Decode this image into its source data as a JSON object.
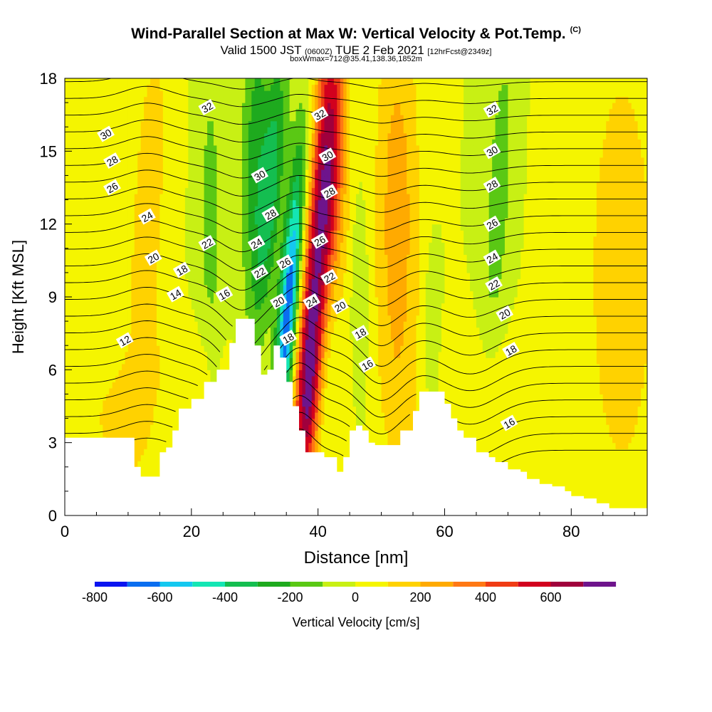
{
  "title": {
    "main": "Wind-Parallel Section at Max W: Vertical Velocity & Pot.Temp.",
    "copyright": "(C)",
    "valid": "Valid 1500 JST",
    "zulu": "(0600Z)",
    "date": "TUE 2 Feb 2021",
    "fcst": "[12hrFcst@2349z]",
    "box": "boxWmax=712@35.41,138.36,1852m"
  },
  "chart_data": {
    "type": "heatmap",
    "xlabel": "Distance [nm]",
    "ylabel": "Height [Kft MSL]",
    "xlim": [
      0,
      92
    ],
    "ylim": [
      0,
      18
    ],
    "xticks": [
      0,
      20,
      40,
      60,
      80
    ],
    "yticks": [
      0,
      3,
      6,
      9,
      12,
      15,
      18
    ],
    "colorbar": {
      "label": "Vertical Velocity [cm/s]",
      "ticks": [
        -800,
        -600,
        -400,
        -200,
        0,
        200,
        400,
        600
      ],
      "levels": [
        -800,
        -700,
        -600,
        -500,
        -400,
        -300,
        -200,
        -100,
        0,
        100,
        200,
        300,
        400,
        500,
        600,
        700
      ],
      "colors": [
        "#0a14f0",
        "#0a6ef0",
        "#14c8f0",
        "#14e6b4",
        "#14be50",
        "#1eaa1e",
        "#5ac814",
        "#c8f014",
        "#f5f500",
        "#ffd200",
        "#ffaa00",
        "#ff7814",
        "#f03c14",
        "#d2001e",
        "#a0003c",
        "#6e148c"
      ]
    },
    "terrain": [
      [
        0,
        3.2
      ],
      [
        10,
        3.2
      ],
      [
        11,
        2
      ],
      [
        12,
        1.6
      ],
      [
        14,
        1.6
      ],
      [
        15,
        2.6
      ],
      [
        16,
        2.8
      ],
      [
        17,
        3.5
      ],
      [
        18,
        4.4
      ],
      [
        20,
        4.8
      ],
      [
        22,
        5.5
      ],
      [
        24,
        6
      ],
      [
        26,
        7.1
      ],
      [
        27,
        8.1
      ],
      [
        29,
        8.1
      ],
      [
        30,
        7
      ],
      [
        31,
        5.8
      ],
      [
        32,
        6
      ],
      [
        33,
        7
      ],
      [
        34,
        6.5
      ],
      [
        35,
        5.5
      ],
      [
        36,
        4.5
      ],
      [
        37,
        3.5
      ],
      [
        38,
        2.6
      ],
      [
        40,
        2.6
      ],
      [
        41,
        2.4
      ],
      [
        42,
        2.4
      ],
      [
        43,
        1.8
      ],
      [
        44,
        2.4
      ],
      [
        45,
        3.5
      ],
      [
        46,
        3.7
      ],
      [
        47,
        3.5
      ],
      [
        48,
        3
      ],
      [
        49,
        2.9
      ],
      [
        52,
        2.9
      ],
      [
        53,
        3.5
      ],
      [
        55,
        4.3
      ],
      [
        56,
        5.1
      ],
      [
        59,
        5.1
      ],
      [
        60,
        4.6
      ],
      [
        61,
        4
      ],
      [
        62,
        3.5
      ],
      [
        63,
        3.2
      ],
      [
        65,
        2.6
      ],
      [
        67,
        2.4
      ],
      [
        68,
        2.2
      ],
      [
        70,
        1.9
      ],
      [
        72,
        1.8
      ],
      [
        73,
        1.5
      ],
      [
        75,
        1.3
      ],
      [
        77,
        1.2
      ],
      [
        79,
        1
      ],
      [
        80,
        0.8
      ],
      [
        82,
        0.7
      ],
      [
        84,
        0.5
      ],
      [
        86,
        0.3
      ],
      [
        92,
        0.3
      ]
    ],
    "wfield": [
      {
        "x": 39.5,
        "y": 9.5,
        "sx": 1.6,
        "sy": 7,
        "w": 650,
        "tilt": 0.28
      },
      {
        "x": 38.5,
        "y": 4.8,
        "sx": 1.2,
        "sy": 2.4,
        "w": 250,
        "tilt": 0.2
      },
      {
        "x": 35.3,
        "y": 8.5,
        "sx": 1.1,
        "sy": 4.5,
        "w": -700,
        "tilt": 0.3
      },
      {
        "x": 32.5,
        "y": 13.5,
        "sx": 1.4,
        "sy": 4,
        "w": -350,
        "tilt": 0.3
      },
      {
        "x": 30,
        "y": 15.5,
        "sx": 1.5,
        "sy": 4.5,
        "w": -230,
        "tilt": 0.1
      },
      {
        "x": 42.5,
        "y": 13.5,
        "sx": 1.8,
        "sy": 6,
        "w": 300,
        "tilt": -0.05
      },
      {
        "x": 42.5,
        "y": 7.5,
        "sx": 1.5,
        "sy": 3,
        "w": -150,
        "tilt": 0.2
      },
      {
        "x": 46.5,
        "y": 9,
        "sx": 1,
        "sy": 3,
        "w": -120,
        "tilt": 0
      },
      {
        "x": 52.5,
        "y": 12,
        "sx": 2.5,
        "sy": 7,
        "w": 260,
        "tilt": 0
      },
      {
        "x": 23,
        "y": 12,
        "sx": 1.6,
        "sy": 6,
        "w": -130,
        "tilt": 0
      },
      {
        "x": 13,
        "y": 12,
        "sx": 2.5,
        "sy": 8,
        "w": 140,
        "tilt": 0.2
      },
      {
        "x": 68.5,
        "y": 13,
        "sx": 1.6,
        "sy": 5.5,
        "w": -150,
        "tilt": 0.2
      },
      {
        "x": 58,
        "y": 7,
        "sx": 0.9,
        "sy": 2.5,
        "w": -130,
        "tilt": 0
      },
      {
        "x": 88,
        "y": 10,
        "sx": 6,
        "sy": 10,
        "w": 130,
        "tilt": 0
      },
      {
        "x": 8,
        "y": 4,
        "sx": 4,
        "sy": 1.5,
        "w": 110,
        "tilt": 0
      },
      {
        "x": 65,
        "y": 5,
        "sx": 6,
        "sy": 2,
        "w": 100,
        "tilt": 0
      },
      {
        "x": 20,
        "y": 6,
        "sx": 4,
        "sy": 1.5,
        "w": 100,
        "tilt": 0
      }
    ],
    "theta_labels": [
      {
        "v": "12",
        "x": 9.5,
        "y": 7.2
      },
      {
        "v": "14",
        "x": 17.5,
        "y": 9.1
      },
      {
        "v": "16",
        "x": 25.2,
        "y": 9.1
      },
      {
        "v": "18",
        "x": 18.5,
        "y": 10.1
      },
      {
        "v": "20",
        "x": 14,
        "y": 10.6
      },
      {
        "v": "22",
        "x": 22.5,
        "y": 11.2
      },
      {
        "v": "24",
        "x": 13,
        "y": 12.3
      },
      {
        "v": "26",
        "x": 7.5,
        "y": 13.5
      },
      {
        "v": "28",
        "x": 7.5,
        "y": 14.6
      },
      {
        "v": "30",
        "x": 6.5,
        "y": 15.7
      },
      {
        "v": "32",
        "x": 22.5,
        "y": 16.8
      },
      {
        "v": "30",
        "x": 30.8,
        "y": 14
      },
      {
        "v": "28",
        "x": 32.5,
        "y": 12.4
      },
      {
        "v": "24",
        "x": 30.3,
        "y": 11.2
      },
      {
        "v": "22",
        "x": 30.8,
        "y": 10
      },
      {
        "v": "20",
        "x": 33.8,
        "y": 8.8
      },
      {
        "v": "18",
        "x": 35.3,
        "y": 7.3
      },
      {
        "v": "26",
        "x": 34.8,
        "y": 10.4
      },
      {
        "v": "24",
        "x": 39,
        "y": 8.8
      },
      {
        "v": "32",
        "x": 40.3,
        "y": 16.5
      },
      {
        "v": "30",
        "x": 41.5,
        "y": 14.8
      },
      {
        "v": "28",
        "x": 41.8,
        "y": 13.3
      },
      {
        "v": "26",
        "x": 40.3,
        "y": 11.3
      },
      {
        "v": "22",
        "x": 41.8,
        "y": 9.8
      },
      {
        "v": "20",
        "x": 43.5,
        "y": 8.6
      },
      {
        "v": "18",
        "x": 46.7,
        "y": 7.5
      },
      {
        "v": "16",
        "x": 47.8,
        "y": 6.2
      },
      {
        "v": "32",
        "x": 67.5,
        "y": 16.7
      },
      {
        "v": "30",
        "x": 67.5,
        "y": 15
      },
      {
        "v": "28",
        "x": 67.5,
        "y": 13.6
      },
      {
        "v": "26",
        "x": 67.5,
        "y": 12
      },
      {
        "v": "24",
        "x": 67.5,
        "y": 10.6
      },
      {
        "v": "22",
        "x": 67.8,
        "y": 9.5
      },
      {
        "v": "20",
        "x": 69.5,
        "y": 8.3
      },
      {
        "v": "18",
        "x": 70.5,
        "y": 6.8
      },
      {
        "v": "16",
        "x": 70.2,
        "y": 3.8
      }
    ]
  },
  "colors": {
    "terrain": "#ffffff",
    "contour": "#000000",
    "frame": "#000000"
  }
}
